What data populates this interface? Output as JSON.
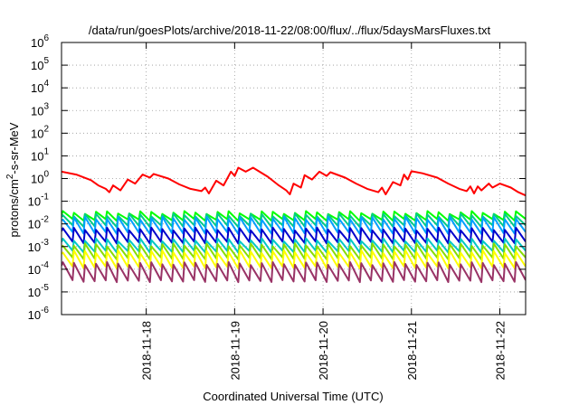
{
  "chart_data": {
    "type": "line",
    "title": "/data/run/goesPlots/archive/2018-11-22/08:00/flux/../flux/5daysMarsFluxes.txt",
    "xlabel": "Coordinated Universal Time (UTC)",
    "ylabel_parts": [
      "protons/cm",
      "2",
      "-s-sr-MeV"
    ],
    "yscale": "log",
    "ylim": [
      1e-06,
      1000000.0
    ],
    "xlim": [
      "2018-11-17T01:00",
      "2018-11-22T07:00"
    ],
    "grid": true,
    "legend": "none",
    "xticks": [
      "2018-11-18",
      "2018-11-19",
      "2018-11-20",
      "2018-11-21",
      "2018-11-22"
    ],
    "yticks": [
      {
        "base": "10",
        "exp": "-6"
      },
      {
        "base": "10",
        "exp": "-5"
      },
      {
        "base": "10",
        "exp": "-4"
      },
      {
        "base": "10",
        "exp": "-3"
      },
      {
        "base": "10",
        "exp": "-2"
      },
      {
        "base": "10",
        "exp": "-1"
      },
      {
        "base": "10",
        "exp": "0"
      },
      {
        "base": "10",
        "exp": "1"
      },
      {
        "base": "10",
        "exp": "2"
      },
      {
        "base": "10",
        "exp": "3"
      },
      {
        "base": "10",
        "exp": "4"
      },
      {
        "base": "10",
        "exp": "5"
      },
      {
        "base": "10",
        "exp": "6"
      }
    ],
    "series": [
      {
        "color": "#ff0000",
        "width": 2,
        "points": [
          [
            "2018-11-17T01:00",
            2.0
          ],
          [
            "2018-11-17T05:00",
            1.5
          ],
          [
            "2018-11-17T09:00",
            0.85
          ],
          [
            "2018-11-17T11:00",
            0.5
          ],
          [
            "2018-11-17T13:00",
            0.35
          ],
          [
            "2018-11-17T14:00",
            0.25
          ],
          [
            "2018-11-17T15:00",
            0.5
          ],
          [
            "2018-11-17T17:00",
            0.3
          ],
          [
            "2018-11-17T19:00",
            0.9
          ],
          [
            "2018-11-17T21:00",
            0.6
          ],
          [
            "2018-11-17T23:00",
            1.5
          ],
          [
            "2018-11-18T01:00",
            1.1
          ],
          [
            "2018-11-18T02:00",
            1.6
          ],
          [
            "2018-11-18T06:00",
            1.0
          ],
          [
            "2018-11-18T09:00",
            0.55
          ],
          [
            "2018-11-18T12:00",
            0.35
          ],
          [
            "2018-11-18T15:00",
            0.28
          ],
          [
            "2018-11-18T16:00",
            0.4
          ],
          [
            "2018-11-18T17:00",
            0.22
          ],
          [
            "2018-11-18T19:00",
            0.8
          ],
          [
            "2018-11-18T21:00",
            0.5
          ],
          [
            "2018-11-18T23:00",
            2.0
          ],
          [
            "2018-11-19T00:00",
            1.3
          ],
          [
            "2018-11-19T01:00",
            3.0
          ],
          [
            "2018-11-19T03:00",
            2.0
          ],
          [
            "2018-11-19T05:00",
            3.0
          ],
          [
            "2018-11-19T09:00",
            1.2
          ],
          [
            "2018-11-19T12:00",
            0.5
          ],
          [
            "2018-11-19T14:00",
            0.3
          ],
          [
            "2018-11-19T15:00",
            0.2
          ],
          [
            "2018-11-19T16:00",
            0.6
          ],
          [
            "2018-11-19T18:00",
            0.4
          ],
          [
            "2018-11-19T19:00",
            1.4
          ],
          [
            "2018-11-19T21:00",
            0.9
          ],
          [
            "2018-11-19T23:00",
            2.0
          ],
          [
            "2018-11-20T01:00",
            1.3
          ],
          [
            "2018-11-20T02:00",
            1.9
          ],
          [
            "2018-11-20T06:00",
            1.1
          ],
          [
            "2018-11-20T09:00",
            0.6
          ],
          [
            "2018-11-20T12:00",
            0.35
          ],
          [
            "2018-11-20T15:00",
            0.25
          ],
          [
            "2018-11-20T16:00",
            0.4
          ],
          [
            "2018-11-20T17:00",
            0.2
          ],
          [
            "2018-11-20T19:00",
            0.7
          ],
          [
            "2018-11-20T21:00",
            0.5
          ],
          [
            "2018-11-20T22:00",
            1.5
          ],
          [
            "2018-11-20T23:00",
            0.9
          ],
          [
            "2018-11-21T00:00",
            2.1
          ],
          [
            "2018-11-21T03:00",
            1.7
          ],
          [
            "2018-11-21T07:00",
            1.1
          ],
          [
            "2018-11-21T10:00",
            0.6
          ],
          [
            "2018-11-21T13:00",
            0.35
          ],
          [
            "2018-11-21T15:00",
            0.28
          ],
          [
            "2018-11-21T16:00",
            0.45
          ],
          [
            "2018-11-21T17:00",
            0.22
          ],
          [
            "2018-11-21T18:00",
            0.45
          ],
          [
            "2018-11-21T19:00",
            0.3
          ],
          [
            "2018-11-21T21:00",
            0.6
          ],
          [
            "2018-11-21T22:00",
            0.4
          ],
          [
            "2018-11-22T00:00",
            0.6
          ],
          [
            "2018-11-22T03:00",
            0.4
          ],
          [
            "2018-11-22T05:00",
            0.25
          ],
          [
            "2018-11-22T07:00",
            0.18
          ]
        ]
      },
      {
        "color": "#00ff00",
        "width": 2,
        "sawtooth": {
          "high": 0.032,
          "low": 0.015
        }
      },
      {
        "color": "#00cc88",
        "width": 2,
        "sawtooth": {
          "high": 0.025,
          "low": 0.008
        }
      },
      {
        "color": "#00a0ff",
        "width": 2,
        "sawtooth": {
          "high": 0.018,
          "low": 0.004
        }
      },
      {
        "color": "#0000cc",
        "width": 2,
        "sawtooth": {
          "high": 0.006,
          "low": 0.0015
        }
      },
      {
        "color": "#00c8c8",
        "width": 2,
        "sawtooth": {
          "high": 0.002,
          "low": 0.0006
        }
      },
      {
        "color": "#88dd00",
        "width": 2,
        "sawtooth": {
          "high": 0.0012,
          "low": 0.0003
        }
      },
      {
        "color": "#ffff00",
        "width": 2,
        "sawtooth": {
          "high": 0.0006,
          "low": 0.00012
        }
      },
      {
        "color": "#993366",
        "width": 2,
        "sawtooth": {
          "high": 0.00018,
          "low": 3e-05
        }
      }
    ]
  }
}
